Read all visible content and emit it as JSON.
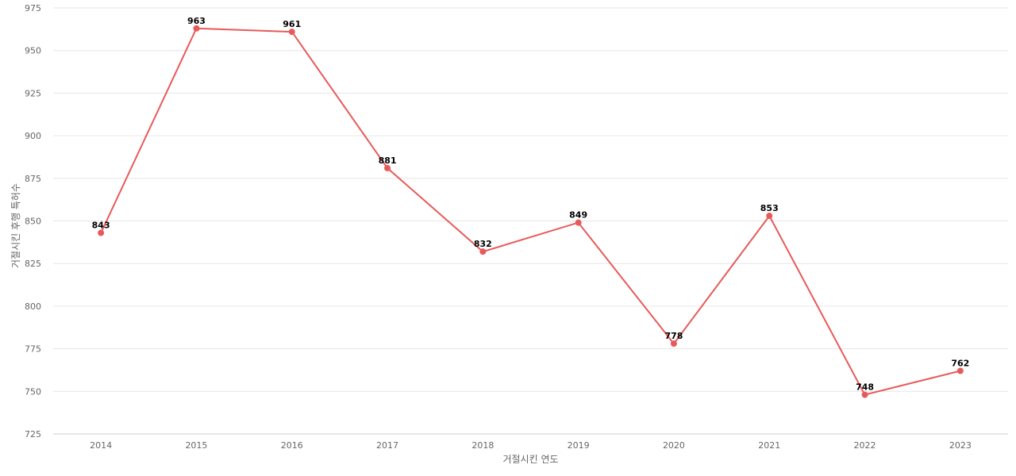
{
  "chart_data": {
    "type": "line",
    "xlabel": "거절시킨 연도",
    "ylabel": "거절시킨 후행 특허수",
    "ylim": [
      725,
      975
    ],
    "yticks": [
      725,
      750,
      775,
      800,
      825,
      850,
      875,
      900,
      925,
      950,
      975
    ],
    "grid": true,
    "legend": "none",
    "line_color": "#e85a5a",
    "categories": [
      "2014",
      "2015",
      "2016",
      "2017",
      "2018",
      "2019",
      "2020",
      "2021",
      "2022",
      "2023"
    ],
    "values": [
      843,
      963,
      961,
      881,
      832,
      849,
      778,
      853,
      748,
      762
    ]
  }
}
